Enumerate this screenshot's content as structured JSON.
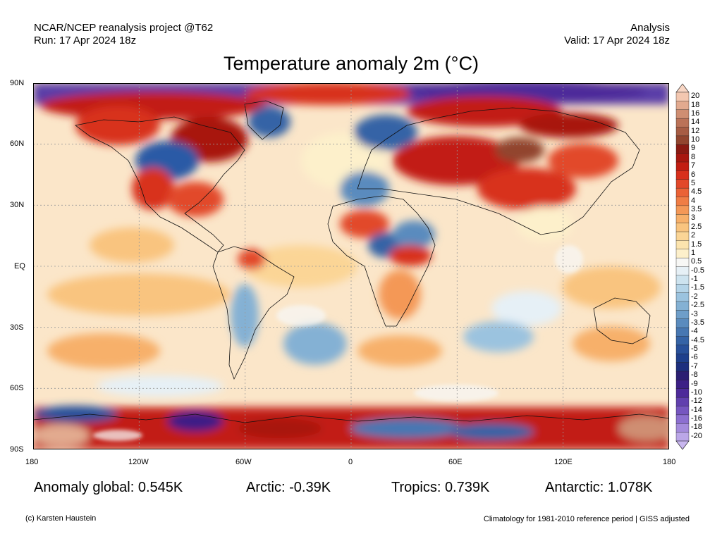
{
  "header": {
    "source": "NCAR/NCEP reanalysis project @T62",
    "run": "Run: 17 Apr 2024 18z",
    "kind": "Analysis",
    "valid": "Valid: 17 Apr 2024 18z"
  },
  "title": "Temperature anomaly 2m (°C)",
  "axes": {
    "lat_labels": [
      "90N",
      "60N",
      "30N",
      "EQ",
      "30S",
      "60S",
      "90S"
    ],
    "lon_labels": [
      "180",
      "120W",
      "60W",
      "0",
      "60E",
      "120E",
      "180"
    ]
  },
  "stats": {
    "global": "Anomaly global: 0.545K",
    "arctic": "Arctic: -0.39K",
    "tropics": "Tropics: 0.739K",
    "antarctic": "Antarctic: 1.078K"
  },
  "footer": {
    "credit": "(c) Karsten Haustein",
    "note": "Climatology for 1981-2010 reference period | GISS adjusted"
  },
  "colorbar": {
    "labels": [
      "20",
      "18",
      "16",
      "14",
      "12",
      "10",
      "9",
      "8",
      "7",
      "6",
      "5",
      "4.5",
      "4",
      "3.5",
      "3",
      "2.5",
      "2",
      "1.5",
      "1",
      "0.5",
      "-0.5",
      "-1",
      "-1.5",
      "-2",
      "-2.5",
      "-3",
      "-3.5",
      "-4",
      "-4.5",
      "-5",
      "-6",
      "-7",
      "-8",
      "-9",
      "-10",
      "-12",
      "-14",
      "-16",
      "-18",
      "-20"
    ],
    "colors": [
      "#f3c7b0",
      "#e2aa8f",
      "#cf8e72",
      "#bb7258",
      "#a75c44",
      "#92452f",
      "#8a1a12",
      "#a8170f",
      "#c21d12",
      "#d8301c",
      "#e2482a",
      "#eb6236",
      "#f07d45",
      "#f49857",
      "#f7b06a",
      "#f9c47f",
      "#fbd596",
      "#fce4ae",
      "#fdf0cb",
      "#f7f7f5",
      "#e6f0f6",
      "#cde3ef",
      "#b4d4e8",
      "#9bc3df",
      "#84b1d4",
      "#6e9ec9",
      "#5a8bbe",
      "#4777b2",
      "#3563a6",
      "#28509a",
      "#1e3f8c",
      "#1d2f7e",
      "#2b1f72",
      "#3c1f86",
      "#4d2a9a",
      "#6140ae",
      "#7656c0",
      "#8c6fd0",
      "#a48bdc",
      "#bba7e8"
    ],
    "top_tri": "#f8d6c4",
    "bottom_tri": "#c8b6ef"
  }
}
